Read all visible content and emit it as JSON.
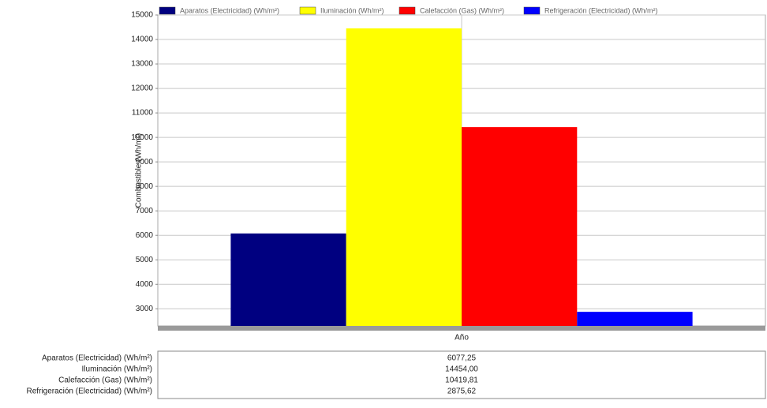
{
  "chart_data": {
    "type": "bar",
    "y_label": "Combustible (Wh/m²)",
    "categories": [
      "Año"
    ],
    "series": [
      {
        "name": "Aparatos (Electricidad) (Wh/m²)",
        "color": "#000080",
        "values": [
          6077.25
        ],
        "value_labels": [
          "6077,25"
        ]
      },
      {
        "name": "Iluminación (Wh/m²)",
        "color": "#ffff00",
        "values": [
          14454.0
        ],
        "value_labels": [
          "14454,00"
        ]
      },
      {
        "name": "Calefacción (Gas) (Wh/m²)",
        "color": "#ff0000",
        "values": [
          10419.81
        ],
        "value_labels": [
          "10419,81"
        ]
      },
      {
        "name": "Refrigeración (Electricidad) (Wh/m²)",
        "color": "#0000ff",
        "values": [
          2875.62
        ],
        "value_labels": [
          "2875,62"
        ]
      }
    ],
    "ylim": [
      2300,
      15000
    ],
    "yticks": [
      3000,
      4000,
      5000,
      6000,
      7000,
      8000,
      9000,
      10000,
      11000,
      12000,
      13000,
      14000,
      15000
    ],
    "grid": true,
    "legend": "top"
  }
}
